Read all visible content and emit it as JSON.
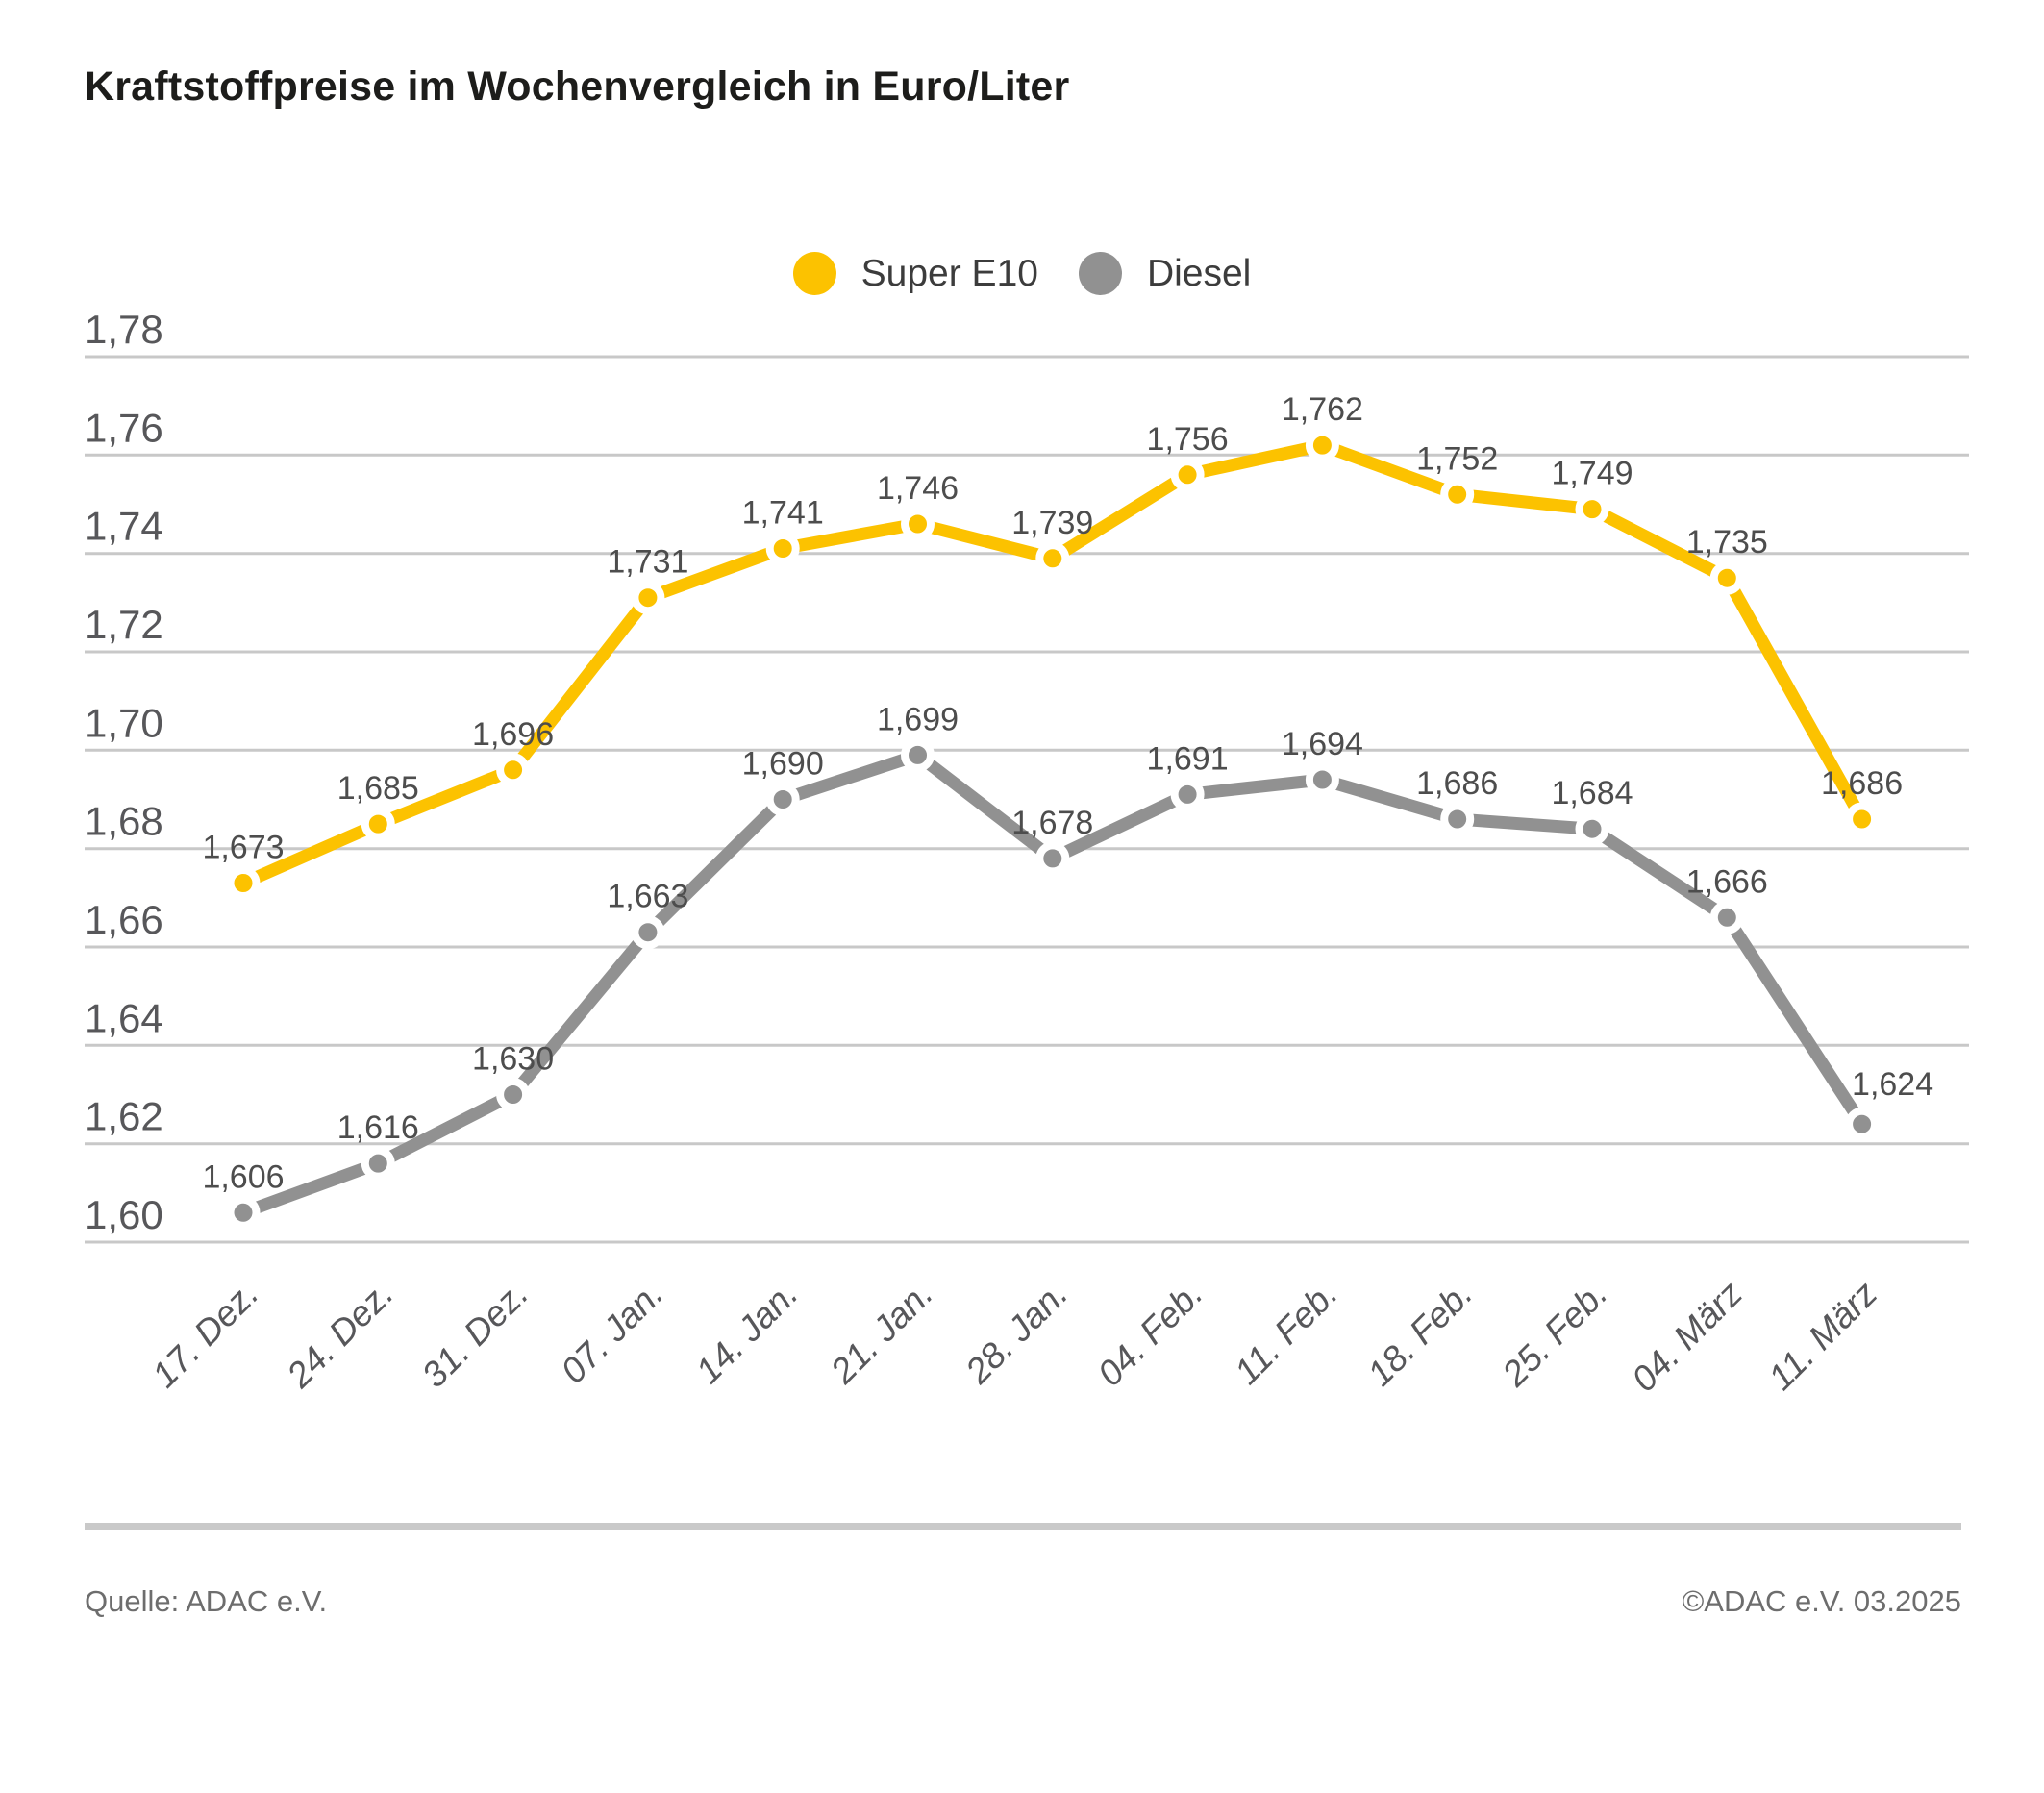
{
  "title": "Kraftstoffpreise im Wochenvergleich in Euro/Liter",
  "chart_data": {
    "type": "line",
    "title": "Kraftstoffpreise im Wochenvergleich in Euro/Liter",
    "unit": "Euro/Liter",
    "categories": [
      "17. Dez.",
      "24. Dez.",
      "31. Dez.",
      "07. Jan.",
      "14. Jan.",
      "21. Jan.",
      "28. Jan.",
      "04. Feb.",
      "11. Feb.",
      "18. Feb.",
      "25. Feb.",
      "04. März",
      "11. März"
    ],
    "series": [
      {
        "name": "Super E10",
        "color": "#FCC200",
        "values": [
          1.673,
          1.685,
          1.696,
          1.731,
          1.741,
          1.746,
          1.739,
          1.756,
          1.762,
          1.752,
          1.749,
          1.735,
          1.686
        ],
        "value_labels": [
          "1,673",
          "1,685",
          "1,696",
          "1,731",
          "1,741",
          "1,746",
          "1,739",
          "1,756",
          "1,762",
          "1,752",
          "1,749",
          "1,735",
          "1,686"
        ]
      },
      {
        "name": "Diesel",
        "color": "#919191",
        "values": [
          1.606,
          1.616,
          1.63,
          1.663,
          1.69,
          1.699,
          1.678,
          1.691,
          1.694,
          1.686,
          1.684,
          1.666,
          1.624
        ],
        "value_labels": [
          "1,606",
          "1,616",
          "1,630",
          "1,663",
          "1,690",
          "1,699",
          "1,678",
          "1,691",
          "1,694",
          "1,686",
          "1,684",
          "1,666",
          "1,624"
        ]
      }
    ],
    "ylim": [
      1.6,
      1.78
    ],
    "yticks": [
      1.78,
      1.76,
      1.74,
      1.72,
      1.7,
      1.68,
      1.66,
      1.64,
      1.62,
      1.6
    ],
    "ytick_labels": [
      "1,78",
      "1,76",
      "1,74",
      "1,72",
      "1,70",
      "1,68",
      "1,66",
      "1,64",
      "1,62",
      "1,60"
    ],
    "grid": true,
    "legend_position": "top-center",
    "colors": {
      "grid": "#C8C8C8",
      "value_label": "#4D4D4D",
      "tick_label": "#57575A"
    },
    "label_offsets": [
      {
        "series": 1,
        "index": 12,
        "dx": 32,
        "dy": -4
      }
    ]
  },
  "footer": {
    "source": "Quelle: ADAC e.V.",
    "copyright": "©ADAC e.V. 03.2025"
  }
}
